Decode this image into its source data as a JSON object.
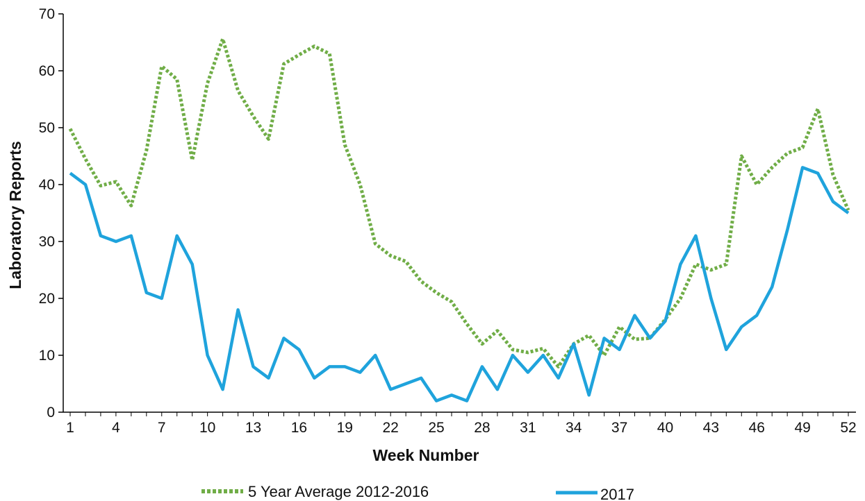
{
  "chart_data": {
    "type": "line",
    "title": "",
    "xlabel": "Week Number",
    "ylabel": "Laboratory Reports",
    "ylim": [
      0,
      70
    ],
    "yticks": [
      0,
      10,
      20,
      30,
      40,
      50,
      60,
      70
    ],
    "xlim": [
      1,
      52
    ],
    "xticks": [
      1,
      4,
      7,
      10,
      13,
      16,
      19,
      22,
      25,
      28,
      31,
      34,
      37,
      40,
      43,
      46,
      49,
      52
    ],
    "grid": false,
    "legend": "bottom",
    "x": [
      1,
      2,
      3,
      4,
      5,
      6,
      7,
      8,
      9,
      10,
      11,
      12,
      13,
      14,
      15,
      16,
      17,
      18,
      19,
      20,
      21,
      22,
      23,
      24,
      25,
      26,
      27,
      28,
      29,
      30,
      31,
      32,
      33,
      34,
      35,
      36,
      37,
      38,
      39,
      40,
      41,
      42,
      43,
      44,
      45,
      46,
      47,
      48,
      49,
      50,
      51,
      52
    ],
    "series": [
      {
        "name": "5 Year Average 2012-2016",
        "color": "#70ad47",
        "style": "dotted",
        "values": [
          49.8,
          44.5,
          39.8,
          40.5,
          36.3,
          46,
          60.8,
          58.5,
          44.3,
          57.8,
          65.6,
          56.5,
          52,
          48,
          61.2,
          62.8,
          64.3,
          63,
          47,
          40,
          29.6,
          27.5,
          26.5,
          23,
          21,
          19.4,
          15.5,
          12,
          14.3,
          11,
          10.5,
          11.2,
          8,
          12,
          13.5,
          10,
          15,
          12.8,
          13,
          16.3,
          20,
          26,
          25,
          26,
          45,
          40,
          43,
          45.5,
          46.5,
          53.3,
          41.7,
          35.5
        ]
      },
      {
        "name": "2017",
        "color": "#1fa3dc",
        "style": "solid",
        "values": [
          42,
          40,
          31,
          30,
          31,
          21,
          20,
          31,
          26,
          10,
          4,
          18,
          8,
          6,
          13,
          11,
          6,
          8,
          8,
          7,
          10,
          4,
          5,
          6,
          2,
          3,
          2,
          8,
          4,
          10,
          7,
          10,
          6,
          12,
          3,
          13,
          11,
          17,
          13,
          16,
          26,
          31,
          20,
          11,
          15,
          17,
          22,
          32,
          43,
          42,
          37,
          35
        ]
      }
    ]
  }
}
